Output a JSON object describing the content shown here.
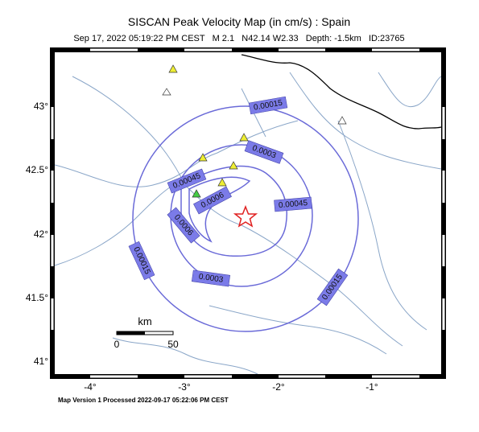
{
  "header": {
    "title": "SISCAN Peak Velocity Map (in cm/s) : Spain",
    "subtitle": "Sep 17, 2022 05:19:22 PM CEST   M 2.1   N42.14 W2.33   Depth: -1.5km   ID:23765"
  },
  "axes": {
    "y_labels": [
      "43°",
      "42.5°",
      "42°",
      "41.5°",
      "41°"
    ],
    "x_labels": [
      "-4°",
      "-3°",
      "-2°",
      "-1°"
    ]
  },
  "contour_labels": [
    "0.00015",
    "0.0003",
    "0.00045",
    "0.00045",
    "0.0006",
    "0.0006",
    "0.00015",
    "0.0003",
    "0.00015"
  ],
  "scale_bar": {
    "unit": "km",
    "start": "0",
    "end": "50"
  },
  "footer": "Map Version 1 Processed 2022-09-17 05:22:06 PM CEST"
}
